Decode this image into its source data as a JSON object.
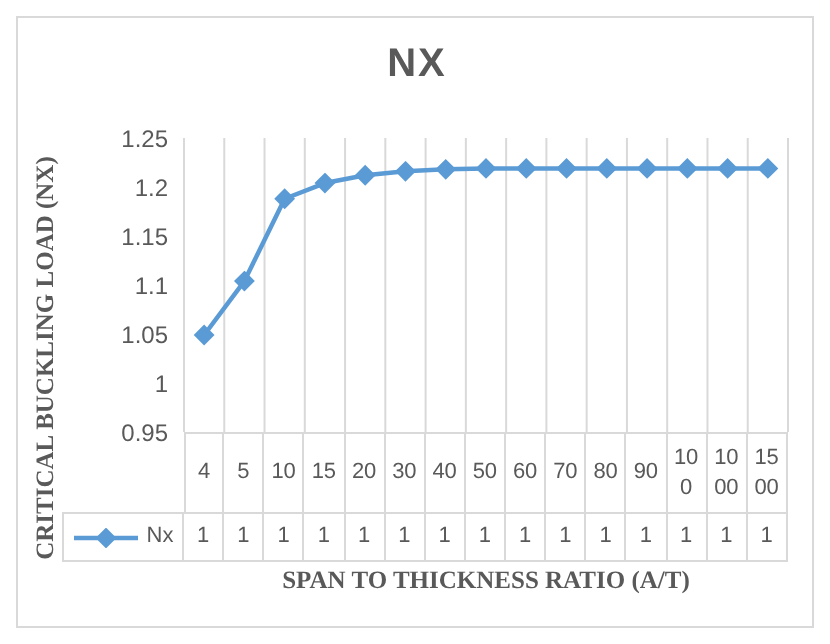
{
  "chart_data": {
    "type": "line",
    "title": "NX",
    "xlabel": "SPAN TO THICKNESS RATIO (A/T)",
    "ylabel": "CRITICAL BUCKLING LOAD (NX)",
    "categories": [
      "4",
      "5",
      "10",
      "15",
      "20",
      "30",
      "40",
      "50",
      "60",
      "70",
      "80",
      "90",
      "100",
      "1000",
      "1500"
    ],
    "series": [
      {
        "name": "Nx",
        "color": "#5b9bd5",
        "values": [
          1.049,
          1.104,
          1.188,
          1.204,
          1.212,
          1.216,
          1.218,
          1.219,
          1.219,
          1.219,
          1.219,
          1.219,
          1.219,
          1.219,
          1.219
        ],
        "value_labels": [
          "1",
          "1",
          "1",
          "1",
          "1",
          "1",
          "1",
          "1",
          "1",
          "1",
          "1",
          "1",
          "1",
          "1",
          "1"
        ]
      }
    ],
    "ylim": [
      0.95,
      1.25
    ],
    "yticks": [
      0.95,
      1,
      1.05,
      1.1,
      1.15,
      1.2,
      1.25
    ],
    "grid": "x",
    "legend": "bottom",
    "marker": "diamond",
    "line_style": "solid"
  }
}
